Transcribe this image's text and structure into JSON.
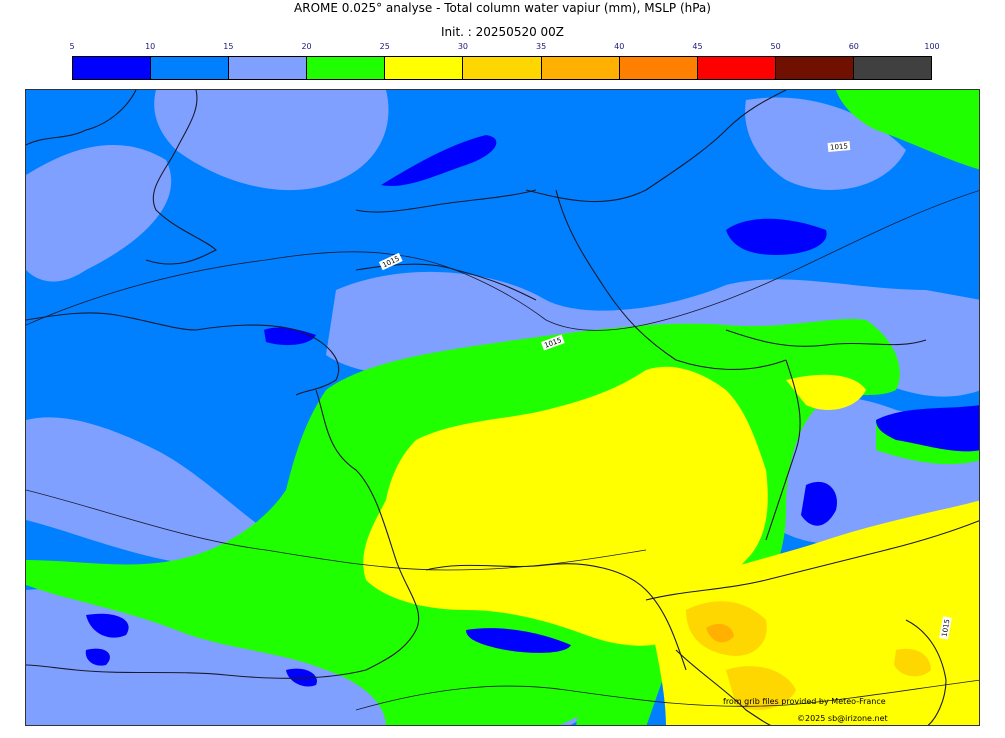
{
  "title": "AROME 0.025° analyse - Total column water vapiur (mm), MSLP (hPa)",
  "subtitle": "Init. : 20250520 00Z",
  "legend": {
    "ticks": [
      "5",
      "10",
      "15",
      "20",
      "25",
      "30",
      "35",
      "40",
      "45",
      "50",
      "60",
      "100"
    ],
    "colors": [
      "#0000ff",
      "#0080ff",
      "#80a0ff",
      "#20ff00",
      "#ffff00",
      "#ffd700",
      "#ffb000",
      "#ff8000",
      "#ff0000",
      "#701000",
      "#404040"
    ]
  },
  "map": {
    "isobar_labels": [
      "1015",
      "1015",
      "1015",
      "1015"
    ],
    "colors": {
      "blue_dark": "#0000ff",
      "blue": "#0080ff",
      "blue_light": "#80a0ff",
      "green": "#20ff00",
      "yellow": "#ffff00",
      "gold": "#ffd700",
      "orange": "#ffb000",
      "coast": "#1a1a2e"
    }
  },
  "credits": {
    "line1": "from grib files provided by Meteo-France",
    "line2": "©2025 sb@irizone.net"
  }
}
